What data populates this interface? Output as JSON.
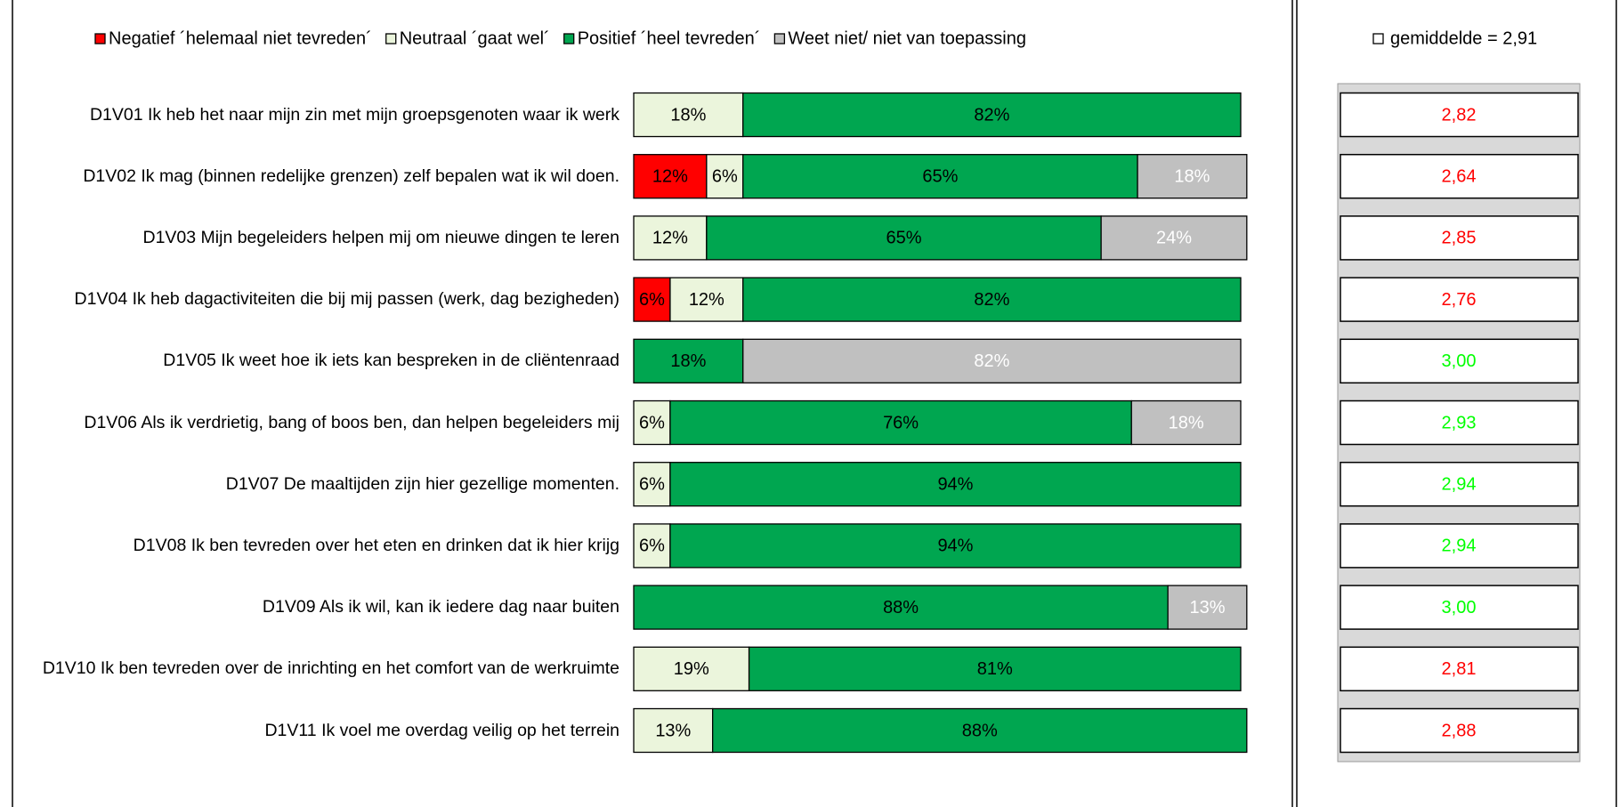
{
  "chart_data": {
    "type": "stacked-bar-horizontal",
    "categories": [
      "D1V01   Ik heb het naar mijn zin met mijn groepsgenoten waar ik werk",
      "D1V02   Ik mag (binnen redelijke grenzen) zelf bepalen wat ik wil doen.",
      "D1V03   Mijn begeleiders helpen mij om nieuwe dingen te leren",
      "D1V04   Ik heb dagactiviteiten die bij mij passen (werk, dag bezigheden)",
      "D1V05   Ik weet hoe ik iets kan bespreken in de cliëntenraad",
      "D1V06   Als ik verdrietig, bang of boos ben, dan helpen begeleiders mij",
      "D1V07   De maaltijden zijn hier gezellige momenten.",
      "D1V08   Ik ben tevreden over het eten en drinken dat ik hier krijg",
      "D1V09   Als ik wil, kan ik iedere dag naar buiten",
      "D1V10   Ik ben tevreden over de inrichting en het comfort van de werkruimte",
      "D1V11   Ik voel me overdag veilig op het terrein"
    ],
    "series": [
      {
        "name": "Negatief ´helemaal niet tevreden´",
        "color": "#ff0000",
        "label_color": "#000000",
        "values": [
          null,
          12,
          null,
          6,
          null,
          null,
          null,
          null,
          null,
          null,
          null
        ],
        "value_labels": [
          null,
          "12%",
          null,
          "6%",
          null,
          null,
          null,
          null,
          null,
          null,
          null
        ]
      },
      {
        "name": "Neutraal ´gaat wel´",
        "color": "#ebf5dc",
        "label_color": "#000000",
        "values": [
          18,
          6,
          12,
          12,
          null,
          6,
          6,
          6,
          null,
          19,
          13
        ],
        "value_labels": [
          "18%",
          "6%",
          "12%",
          "12%",
          null,
          "6%",
          "6%",
          "6%",
          null,
          "19%",
          "13%"
        ]
      },
      {
        "name": "Positief ´heel tevreden´",
        "color": "#00a650",
        "label_color": "#000000",
        "values": [
          82,
          65,
          65,
          82,
          18,
          76,
          94,
          94,
          88,
          81,
          88
        ],
        "value_labels": [
          "82%",
          "65%",
          "65%",
          "82%",
          "18%",
          "76%",
          "94%",
          "94%",
          "88%",
          "81%",
          "88%"
        ]
      },
      {
        "name": "Weet niet/ niet van toepassing",
        "color": "#c0c0c0",
        "label_color": "#ffffff",
        "values": [
          null,
          18,
          24,
          null,
          82,
          18,
          null,
          null,
          13,
          null,
          null
        ],
        "value_labels": [
          null,
          "18%",
          "24%",
          null,
          "82%",
          "18%",
          null,
          null,
          "13%",
          null,
          null
        ]
      }
    ],
    "averages": {
      "legend": "gemiddelde = 2,91",
      "values": [
        2.82,
        2.64,
        2.85,
        2.76,
        3.0,
        2.93,
        2.94,
        2.94,
        3.0,
        2.81,
        2.88
      ],
      "value_labels": [
        "2,82",
        "2,64",
        "2,85",
        "2,76",
        "3,00",
        "2,93",
        "2,94",
        "2,94",
        "3,00",
        "2,81",
        "2,88"
      ],
      "value_colors": [
        "#ff0000",
        "#ff0000",
        "#ff0000",
        "#ff0000",
        "#00ff00",
        "#00ff00",
        "#00ff00",
        "#00ff00",
        "#00ff00",
        "#ff0000",
        "#ff0000"
      ]
    }
  }
}
